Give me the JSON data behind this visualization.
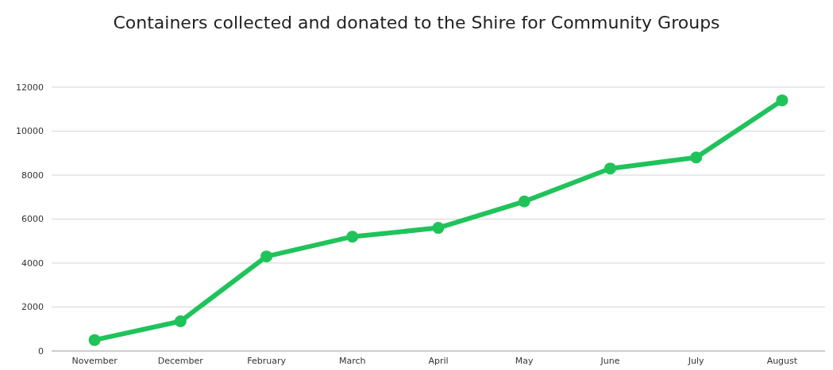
{
  "chart_data": {
    "type": "line",
    "title": "Containers collected and donated to the Shire for Community Groups",
    "categories": [
      "November",
      "December",
      "February",
      "March",
      "April",
      "May",
      "June",
      "July",
      "August"
    ],
    "series": [
      {
        "color": "#1fc35a",
        "values": [
          500,
          1350,
          4300,
          5200,
          5600,
          6800,
          8300,
          8800,
          11400
        ]
      }
    ],
    "ylim": [
      0,
      12000
    ],
    "yticks": [
      0,
      2000,
      4000,
      6000,
      8000,
      10000,
      12000
    ],
    "grid": "y",
    "marker": "circle",
    "line_style": "solid"
  }
}
